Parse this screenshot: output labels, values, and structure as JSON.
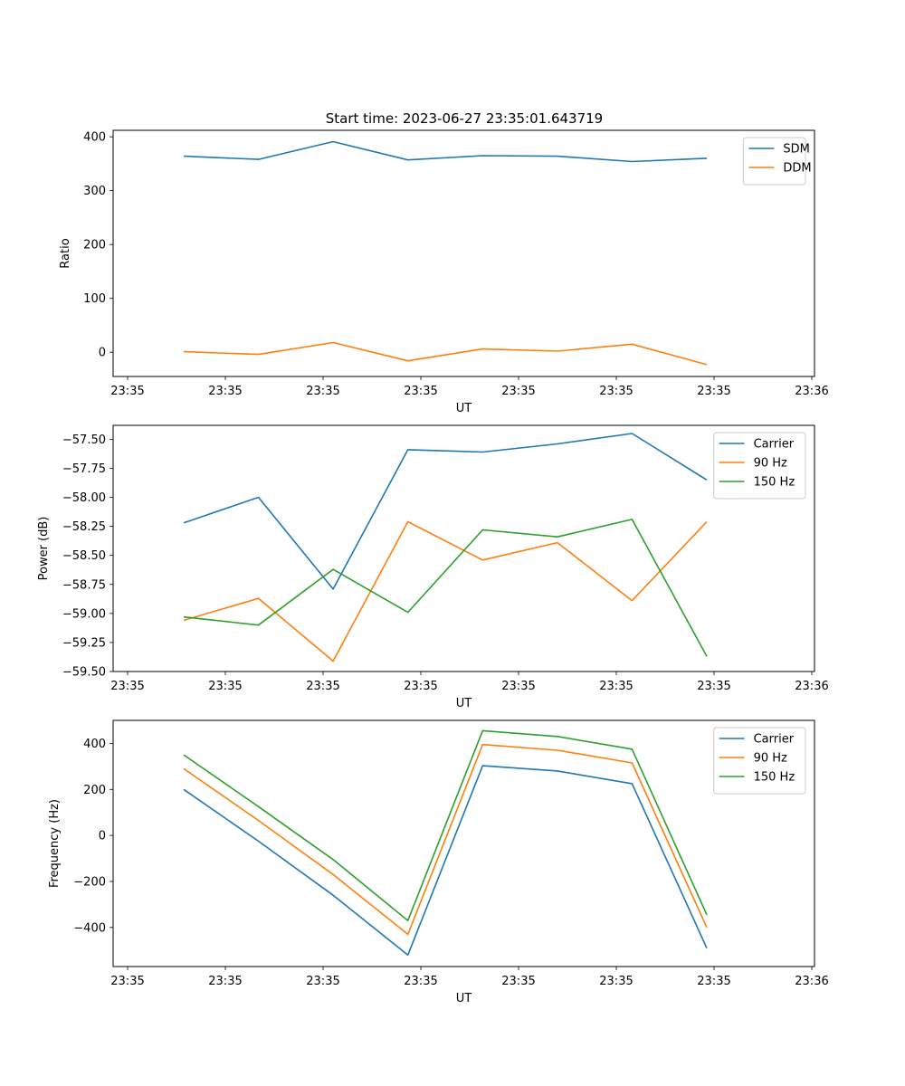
{
  "title": "Start time: 2023-06-27 23:35:01.643719",
  "colors": {
    "blue": "#1f77b4",
    "orange": "#ff7f0e",
    "green": "#2ca02c"
  },
  "chart_data": [
    {
      "type": "line",
      "xlabel": "UT",
      "ylabel": "Ratio",
      "x_tick_labels": [
        "23:35",
        "23:35",
        "23:35",
        "23:35",
        "23:35",
        "23:35",
        "23:35",
        "23:36"
      ],
      "yticks": [
        0,
        100,
        200,
        300,
        400
      ],
      "ylim": [
        -45,
        412
      ],
      "legend": "top-right",
      "series": [
        {
          "name": "SDM",
          "color": "#1f77b4",
          "values": [
            364,
            358,
            391,
            357,
            365,
            364,
            354,
            360
          ]
        },
        {
          "name": "DDM",
          "color": "#ff7f0e",
          "values": [
            1,
            -4,
            18,
            -16,
            6,
            2,
            15,
            -23
          ]
        }
      ]
    },
    {
      "type": "line",
      "xlabel": "UT",
      "ylabel": "Power (dB)",
      "x_tick_labels": [
        "23:35",
        "23:35",
        "23:35",
        "23:35",
        "23:35",
        "23:35",
        "23:35",
        "23:36"
      ],
      "yticks": [
        -57.5,
        -57.75,
        -58.0,
        -58.25,
        -58.5,
        -58.75,
        -59.0,
        -59.25,
        -59.5
      ],
      "ytick_labels": [
        "−57.50",
        "−57.75",
        "−58.00",
        "−58.25",
        "−58.50",
        "−58.75",
        "−59.00",
        "−59.25",
        "−59.50"
      ],
      "ylim": [
        -59.5,
        -57.38
      ],
      "legend": "top-right",
      "series": [
        {
          "name": "Carrier",
          "color": "#1f77b4",
          "values": [
            -58.22,
            -58.0,
            -58.79,
            -57.59,
            -57.61,
            -57.54,
            -57.45,
            -57.85
          ]
        },
        {
          "name": "90 Hz",
          "color": "#ff7f0e",
          "values": [
            -59.06,
            -58.87,
            -59.41,
            -58.21,
            -58.54,
            -58.39,
            -58.89,
            -58.21
          ]
        },
        {
          "name": "150 Hz",
          "color": "#2ca02c",
          "values": [
            -59.03,
            -59.1,
            -58.62,
            -58.99,
            -58.28,
            -58.34,
            -58.19,
            -59.37
          ]
        }
      ]
    },
    {
      "type": "line",
      "xlabel": "UT",
      "ylabel": "Frequency (Hz)",
      "x_tick_labels": [
        "23:35",
        "23:35",
        "23:35",
        "23:35",
        "23:35",
        "23:35",
        "23:35",
        "23:36"
      ],
      "yticks": [
        -400,
        -200,
        0,
        200,
        400
      ],
      "ytick_labels": [
        "−400",
        "−200",
        "0",
        "200",
        "400"
      ],
      "ylim": [
        -570,
        500
      ],
      "legend": "top-right",
      "series": [
        {
          "name": "Carrier",
          "color": "#1f77b4",
          "values": [
            200,
            -25,
            -260,
            -520,
            303,
            280,
            225,
            -490
          ]
        },
        {
          "name": "90 Hz",
          "color": "#ff7f0e",
          "values": [
            290,
            65,
            -170,
            -430,
            395,
            370,
            315,
            -400
          ]
        },
        {
          "name": "150 Hz",
          "color": "#2ca02c",
          "values": [
            350,
            125,
            -105,
            -370,
            455,
            430,
            375,
            -345
          ]
        }
      ]
    }
  ]
}
